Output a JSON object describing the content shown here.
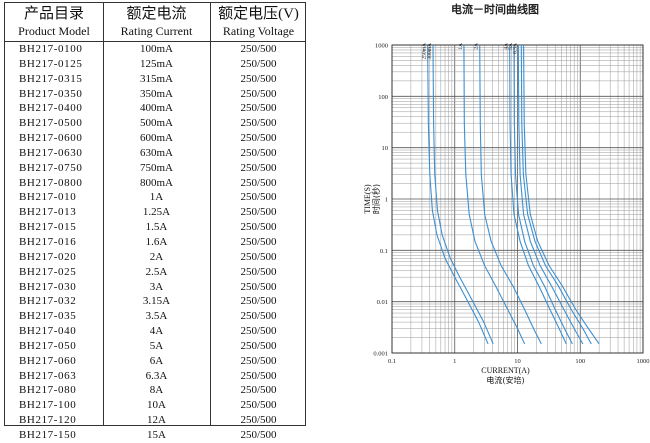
{
  "table": {
    "headers": [
      {
        "zh": "产品目录",
        "en": "Product Model"
      },
      {
        "zh": "额定电流",
        "en": "Rating Current"
      },
      {
        "zh": "额定电压(V)",
        "en": "Rating Voltage"
      }
    ],
    "rows": [
      {
        "model": "BH217-0100",
        "current": "100mA",
        "voltage": "250/500"
      },
      {
        "model": "BH217-0125",
        "current": "125mA",
        "voltage": "250/500"
      },
      {
        "model": "BH217-0315",
        "current": "315mA",
        "voltage": "250/500"
      },
      {
        "model": "BH217-0350",
        "current": "350mA",
        "voltage": "250/500"
      },
      {
        "model": "BH217-0400",
        "current": "400mA",
        "voltage": "250/500"
      },
      {
        "model": "BH217-0500",
        "current": "500mA",
        "voltage": "250/500"
      },
      {
        "model": "BH217-0600",
        "current": "600mA",
        "voltage": "250/500"
      },
      {
        "model": "BH217-0630",
        "current": "630mA",
        "voltage": "250/500"
      },
      {
        "model": "BH217-0750",
        "current": "750mA",
        "voltage": "250/500"
      },
      {
        "model": "BH217-0800",
        "current": "800mA",
        "voltage": "250/500"
      },
      {
        "model": "BH217-010",
        "current": "1A",
        "voltage": "250/500"
      },
      {
        "model": "BH217-013",
        "current": "1.25A",
        "voltage": "250/500"
      },
      {
        "model": "BH217-015",
        "current": "1.5A",
        "voltage": "250/500"
      },
      {
        "model": "BH217-016",
        "current": "1.6A",
        "voltage": "250/500"
      },
      {
        "model": "BH217-020",
        "current": "2A",
        "voltage": "250/500"
      },
      {
        "model": "BH217-025",
        "current": "2.5A",
        "voltage": "250/500"
      },
      {
        "model": "BH217-030",
        "current": "3A",
        "voltage": "250/500"
      },
      {
        "model": "BH217-032",
        "current": "3.15A",
        "voltage": "250/500"
      },
      {
        "model": "BH217-035",
        "current": "3.5A",
        "voltage": "250/500"
      },
      {
        "model": "BH217-040",
        "current": "4A",
        "voltage": "250/500"
      },
      {
        "model": "BH217-050",
        "current": "5A",
        "voltage": "250/500"
      },
      {
        "model": "BH217-060",
        "current": "6A",
        "voltage": "250/500"
      },
      {
        "model": "BH217-063",
        "current": "6.3A",
        "voltage": "250/500"
      },
      {
        "model": "BH217-080",
        "current": "8A",
        "voltage": "250/500"
      },
      {
        "model": "BH217-100",
        "current": "10A",
        "voltage": "250/500"
      },
      {
        "model": "BH217-120",
        "current": "12A",
        "voltage": "250/500"
      },
      {
        "model": "BH217-150",
        "current": "15A",
        "voltage": "250/500"
      }
    ]
  },
  "chart_data": {
    "type": "line",
    "title": "电流－时间曲线图",
    "xlabel": "CURRENT(A)",
    "xlabel_zh": "电流(安培)",
    "ylabel": "TIME(S)",
    "ylabel_zh": "时间(秒)",
    "x_scale": "log",
    "y_scale": "log",
    "xlim": [
      0.1,
      1000
    ],
    "ylim": [
      0.001,
      1000
    ],
    "x_ticks": [
      "0.1",
      "1",
      "10",
      "100",
      "1000"
    ],
    "y_ticks": [
      "1000",
      "100",
      "10",
      "1",
      "0.1",
      "0.01",
      "0.001"
    ],
    "grid": true,
    "line_color": "#3d8fd1",
    "series": [
      {
        "name": "250mA",
        "points": [
          [
            0.37,
            1000
          ],
          [
            0.38,
            30
          ],
          [
            0.4,
            3
          ],
          [
            0.44,
            0.6
          ],
          [
            0.52,
            0.2
          ],
          [
            0.7,
            0.07
          ],
          [
            1.0,
            0.03
          ],
          [
            1.5,
            0.012
          ],
          [
            2.4,
            0.004
          ],
          [
            3.4,
            0.0015
          ]
        ]
      },
      {
        "name": "300mA",
        "points": [
          [
            0.45,
            1000
          ],
          [
            0.46,
            30
          ],
          [
            0.48,
            3
          ],
          [
            0.53,
            0.6
          ],
          [
            0.63,
            0.2
          ],
          [
            0.85,
            0.07
          ],
          [
            1.2,
            0.03
          ],
          [
            1.8,
            0.012
          ],
          [
            2.9,
            0.004
          ],
          [
            4.1,
            0.0015
          ]
        ]
      },
      {
        "name": "1A",
        "points": [
          [
            1.4,
            1000
          ],
          [
            1.42,
            30
          ],
          [
            1.5,
            3
          ],
          [
            1.7,
            0.5
          ],
          [
            2.1,
            0.15
          ],
          [
            3.0,
            0.05
          ],
          [
            4.5,
            0.02
          ],
          [
            7,
            0.007
          ],
          [
            10,
            0.003
          ],
          [
            13,
            0.0015
          ]
        ]
      },
      {
        "name": "2A",
        "points": [
          [
            2.5,
            1000
          ],
          [
            2.55,
            30
          ],
          [
            2.65,
            3
          ],
          [
            3.0,
            0.5
          ],
          [
            3.8,
            0.15
          ],
          [
            5.5,
            0.05
          ],
          [
            8.5,
            0.02
          ],
          [
            13,
            0.007
          ],
          [
            18,
            0.003
          ],
          [
            24,
            0.0015
          ]
        ]
      },
      {
        "name": "4A",
        "points": [
          [
            7.5,
            1000
          ],
          [
            7.6,
            30
          ],
          [
            7.9,
            3
          ],
          [
            8.8,
            0.5
          ],
          [
            11,
            0.15
          ],
          [
            15,
            0.05
          ],
          [
            22,
            0.02
          ],
          [
            33,
            0.007
          ],
          [
            46,
            0.003
          ],
          [
            60,
            0.0015
          ]
        ]
      },
      {
        "name": "5A",
        "points": [
          [
            8.8,
            1000
          ],
          [
            8.9,
            30
          ],
          [
            9.3,
            3
          ],
          [
            10.4,
            0.5
          ],
          [
            13,
            0.15
          ],
          [
            18,
            0.05
          ],
          [
            27,
            0.02
          ],
          [
            40,
            0.007
          ],
          [
            56,
            0.003
          ],
          [
            75,
            0.0015
          ]
        ]
      },
      {
        "name": "6.3A",
        "points": [
          [
            10.3,
            1000
          ],
          [
            10.5,
            30
          ],
          [
            11,
            3
          ],
          [
            12.5,
            0.5
          ],
          [
            16,
            0.15
          ],
          [
            23,
            0.05
          ],
          [
            35,
            0.02
          ],
          [
            55,
            0.007
          ],
          [
            80,
            0.003
          ],
          [
            110,
            0.0015
          ]
        ]
      },
      {
        "name": "",
        "points": [
          [
            11.5,
            1000
          ],
          [
            11.7,
            30
          ],
          [
            12.4,
            3
          ],
          [
            14.5,
            0.5
          ],
          [
            19,
            0.15
          ],
          [
            28,
            0.05
          ],
          [
            45,
            0.02
          ],
          [
            72,
            0.007
          ],
          [
            110,
            0.003
          ],
          [
            150,
            0.0015
          ]
        ]
      },
      {
        "name": "",
        "points": [
          [
            12.5,
            1000
          ],
          [
            12.8,
            30
          ],
          [
            13.6,
            3
          ],
          [
            16,
            0.5
          ],
          [
            21,
            0.15
          ],
          [
            32,
            0.05
          ],
          [
            52,
            0.02
          ],
          [
            85,
            0.007
          ],
          [
            135,
            0.003
          ],
          [
            200,
            0.0015
          ]
        ]
      }
    ]
  }
}
